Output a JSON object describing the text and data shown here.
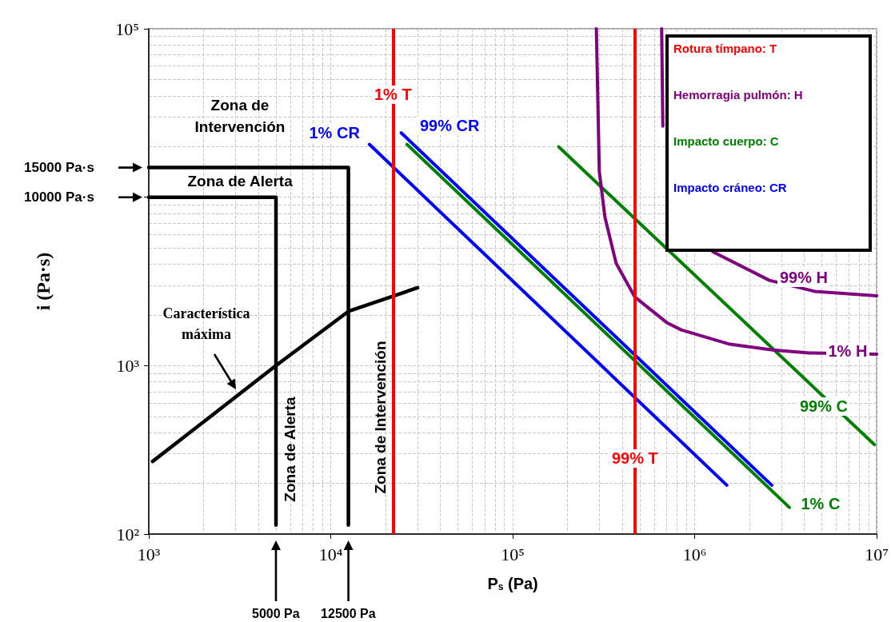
{
  "chart_data": {
    "type": "line",
    "xlabel": "P$_{s}$ (Pa)",
    "ylabel": "i (Pa·s)",
    "log": "xy",
    "grid": true,
    "legend": false,
    "marker": "none",
    "xlim": [
      1000,
      10000000
    ],
    "xticks": [
      {
        "value": 1000,
        "label": "10³"
      },
      {
        "value": 10000,
        "label": "10⁴"
      },
      {
        "value": 100000,
        "label": "10⁵"
      },
      {
        "value": 1000000,
        "label": "10⁶"
      },
      {
        "value": 10000000,
        "label": "10⁷"
      }
    ],
    "ylim": [
      100,
      100000
    ],
    "yticks": [
      {
        "value": 100,
        "label": "10²"
      },
      {
        "value": 1000,
        "label": "10³"
      },
      {
        "value": 10000,
        "label": null
      },
      {
        "value": 100000,
        "label": "10⁵"
      }
    ],
    "series": [
      {
        "name": "1% CR",
        "color": "#0000ff",
        "x": [
          16300,
          1500000
        ],
        "values": [
          20600,
          195
        ]
      },
      {
        "name": "99% CR",
        "color": "#0000ff",
        "x": [
          24400,
          2650000
        ],
        "values": [
          24100,
          195
        ]
      },
      {
        "name": "1% C",
        "color": "#008000",
        "x": [
          26200,
          3310000
        ],
        "values": [
          20600,
          144
        ]
      },
      {
        "name": "99% C",
        "color": "#008000",
        "x": [
          179000,
          9700000
        ],
        "values": [
          19900,
          340
        ]
      },
      {
        "name": "1% H",
        "color": "#800080",
        "x": [
          288000,
          299000,
          321000,
          370000,
          468000,
          708000,
          843000,
          1560000,
          2680000,
          4260000,
          10000000
        ],
        "values": [
          100000,
          14200,
          7620,
          4050,
          2560,
          1790,
          1630,
          1340,
          1240,
          1190,
          1170
        ]
      },
      {
        "name": "99% H",
        "color": "#800080",
        "x": [
          658000,
          668000,
          900000,
          1260000,
          2570000,
          4560000,
          10000000
        ],
        "values": [
          100000,
          26400,
          null,
          4740,
          3210,
          2760,
          2600
        ]
      },
      {
        "color": "#000000",
        "x": [
          1000,
          5000,
          5000
        ],
        "values": [
          10000,
          10000,
          113
        ]
      },
      {
        "color": "#000000",
        "x": [
          1000,
          12500,
          12500
        ],
        "values": [
          15000,
          15000,
          113
        ]
      },
      {
        "color": "#000000",
        "x": [
          1050,
          5000,
          12500,
          30000
        ],
        "values": [
          270,
          1000,
          2100,
          2900
        ]
      }
    ],
    "ref_lines": [
      {
        "axis": "x",
        "value": 22000,
        "label": "1% T",
        "color": "#ff0000"
      },
      {
        "axis": "x",
        "value": 470000,
        "label": "99% T",
        "color": "#ff0000"
      }
    ],
    "annotations": [
      "Zona de Intervención",
      "Zona de Alerta",
      "15000 Pa·s",
      "10000 Pa·s",
      "Característica máxima",
      "Zona de Alerta",
      "Zona de Intervención",
      "5000 Pa",
      "12500 Pa",
      "Rotura tímpano: T",
      "Hemorragia pulmón: H",
      "Impacto cuerpo: C",
      "Impacto cráneo: CR"
    ]
  }
}
